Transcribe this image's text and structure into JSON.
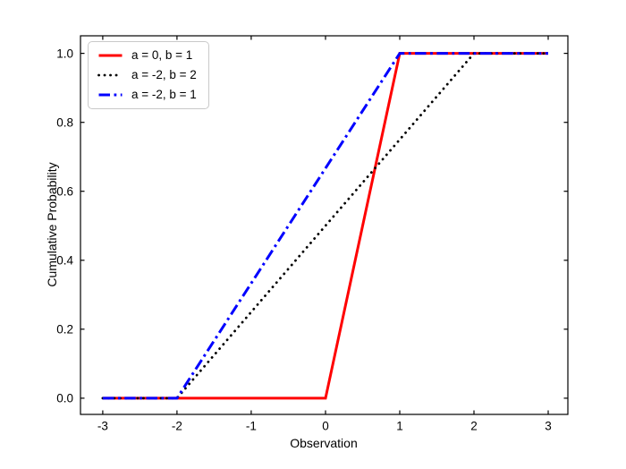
{
  "chart_data": {
    "type": "line",
    "title": "",
    "xlabel": "Observation",
    "ylabel": "Cumulative Probability",
    "xlim": [
      -3.3,
      3.265
    ],
    "ylim": [
      -0.047,
      1.051
    ],
    "x_ticks": [
      -3,
      -2,
      -1,
      0,
      1,
      2,
      3
    ],
    "x_tick_labels": [
      "-3",
      "-2",
      "-1",
      "0",
      "1",
      "2",
      "3"
    ],
    "y_ticks": [
      0,
      0.2,
      0.4,
      0.6,
      0.8,
      1.0
    ],
    "y_tick_labels": [
      "0.0",
      "0.2",
      "0.4",
      "0.6",
      "0.8",
      "1.0"
    ],
    "grid": false,
    "axes_box": true,
    "tick_direction": "in",
    "legend_position": "upper left",
    "series": [
      {
        "name": "a = 0, b = 1",
        "color": "#ff0000",
        "style": "solid",
        "x": [
          -3,
          0,
          1,
          3
        ],
        "y": [
          0,
          0,
          1,
          1
        ]
      },
      {
        "name": "a = -2, b = 2",
        "color": "#000000",
        "style": "dotted",
        "x": [
          -3,
          -2,
          2,
          3
        ],
        "y": [
          0,
          0,
          1,
          1
        ]
      },
      {
        "name": "a = -2, b = 1",
        "color": "#0000ff",
        "style": "dashdot",
        "x": [
          -3,
          -2,
          1,
          3
        ],
        "y": [
          0,
          0,
          1,
          1
        ]
      }
    ]
  }
}
